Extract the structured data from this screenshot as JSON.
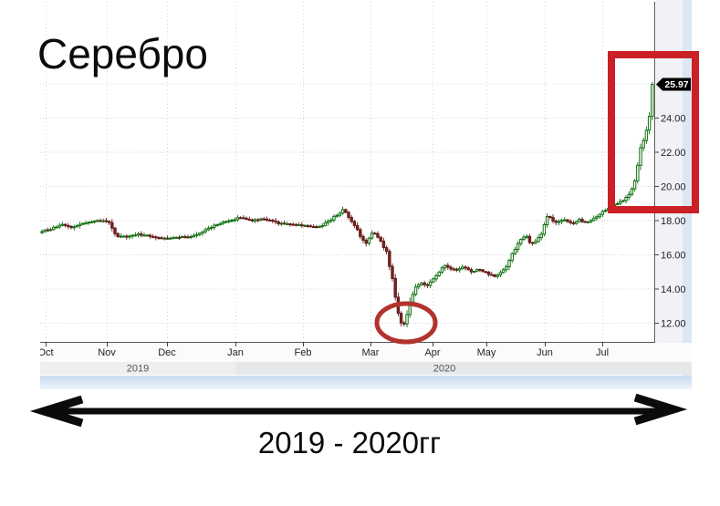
{
  "page": {
    "title_annotation": "Серебро",
    "range_caption": "2019 - 2020гг"
  },
  "chart_data": {
    "type": "candlestick",
    "instrument": "Серебро",
    "last_price": "25.97",
    "last_price_value": 25.97,
    "x_ticks": [
      "Oct",
      "Nov",
      "Dec",
      "Jan",
      "Feb",
      "Mar",
      "Apr",
      "May",
      "Jun",
      "Jul"
    ],
    "year_bands": [
      {
        "label": "2019",
        "covers": "Oct–Dec"
      },
      {
        "label": "2020",
        "covers": "Jan–Jul"
      }
    ],
    "y_tick_labels": [
      "24.00",
      "22.00",
      "20.00",
      "18.00",
      "16.00",
      "14.00",
      "12.00"
    ],
    "y_tick_values": [
      24,
      22,
      20,
      18,
      16,
      14,
      12
    ],
    "grid_values": [
      12,
      14,
      16,
      18,
      20,
      22,
      24,
      26
    ],
    "ylim": [
      11.3,
      27.3
    ],
    "grid": true,
    "legend_position": "none",
    "price_path_month_price": [
      [
        -0.07,
        17.35
      ],
      [
        0.1,
        17.5
      ],
      [
        0.3,
        17.75
      ],
      [
        0.45,
        17.6
      ],
      [
        0.65,
        17.85
      ],
      [
        0.9,
        18.0
      ],
      [
        1.05,
        17.95
      ],
      [
        1.18,
        17.1
      ],
      [
        1.35,
        17.05
      ],
      [
        1.55,
        17.2
      ],
      [
        1.75,
        17.1
      ],
      [
        1.95,
        16.95
      ],
      [
        2.15,
        17.0
      ],
      [
        2.4,
        17.1
      ],
      [
        2.6,
        17.5
      ],
      [
        2.8,
        17.85
      ],
      [
        2.95,
        18.0
      ],
      [
        3.1,
        18.2
      ],
      [
        3.25,
        18.0
      ],
      [
        3.45,
        18.1
      ],
      [
        3.65,
        17.85
      ],
      [
        3.85,
        17.8
      ],
      [
        4.05,
        17.7
      ],
      [
        4.25,
        17.6
      ],
      [
        4.45,
        18.1
      ],
      [
        4.62,
        18.65
      ],
      [
        4.8,
        17.6
      ],
      [
        4.95,
        16.6
      ],
      [
        5.07,
        17.35
      ],
      [
        5.18,
        16.9
      ],
      [
        5.3,
        16.0
      ],
      [
        5.42,
        13.6
      ],
      [
        5.5,
        12.1
      ],
      [
        5.57,
        11.9
      ],
      [
        5.65,
        13.2
      ],
      [
        5.75,
        14.15
      ],
      [
        5.85,
        14.35
      ],
      [
        5.95,
        14.2
      ],
      [
        6.1,
        14.8
      ],
      [
        6.25,
        15.35
      ],
      [
        6.45,
        15.1
      ],
      [
        6.6,
        15.3
      ],
      [
        6.75,
        15.0
      ],
      [
        6.9,
        15.15
      ],
      [
        7.05,
        14.9
      ],
      [
        7.18,
        14.7
      ],
      [
        7.35,
        15.2
      ],
      [
        7.5,
        16.3
      ],
      [
        7.62,
        16.9
      ],
      [
        7.7,
        17.15
      ],
      [
        7.8,
        16.6
      ],
      [
        7.95,
        17.1
      ],
      [
        8.08,
        18.3
      ],
      [
        8.2,
        17.85
      ],
      [
        8.35,
        18.1
      ],
      [
        8.5,
        17.8
      ],
      [
        8.62,
        18.05
      ],
      [
        8.75,
        17.9
      ],
      [
        8.9,
        18.2
      ],
      [
        9.0,
        18.45
      ],
      [
        9.12,
        18.7
      ],
      [
        9.25,
        18.95
      ],
      [
        9.4,
        19.15
      ],
      [
        9.52,
        19.6
      ],
      [
        9.62,
        20.3
      ],
      [
        9.68,
        21.3
      ],
      [
        9.76,
        22.95
      ],
      [
        9.8,
        22.6
      ],
      [
        9.87,
        23.9
      ],
      [
        9.93,
        25.2
      ],
      [
        9.97,
        25.97
      ]
    ],
    "annotations": {
      "rectangle": {
        "color": "#cb2026",
        "marks": "July 2020 vertical rally up to 25.97"
      },
      "ellipse": {
        "color": "#b2332e",
        "marks": "March 2020 crash low near 12.00"
      },
      "double_arrow_caption": "2019 - 2020гг"
    }
  },
  "colors": {
    "candle_up_stroke": "#0e6f0e",
    "candle_up_fill": "#ffffff",
    "candle_down_fill": "#7c2321",
    "candle_down_stroke": "#611b19",
    "grid": "#d6d6d6",
    "axis": "#555555",
    "price_label_bg": "#000000",
    "year_band_2019_bg": "#efefef",
    "year_band_2020_bg": "#e6e8ea",
    "scrollbar_blue": "#d4e2f3",
    "label_strip_bg": "#f0f2f5",
    "annotation_red": "#cb2026",
    "ellipse_red": "#b2332e"
  }
}
